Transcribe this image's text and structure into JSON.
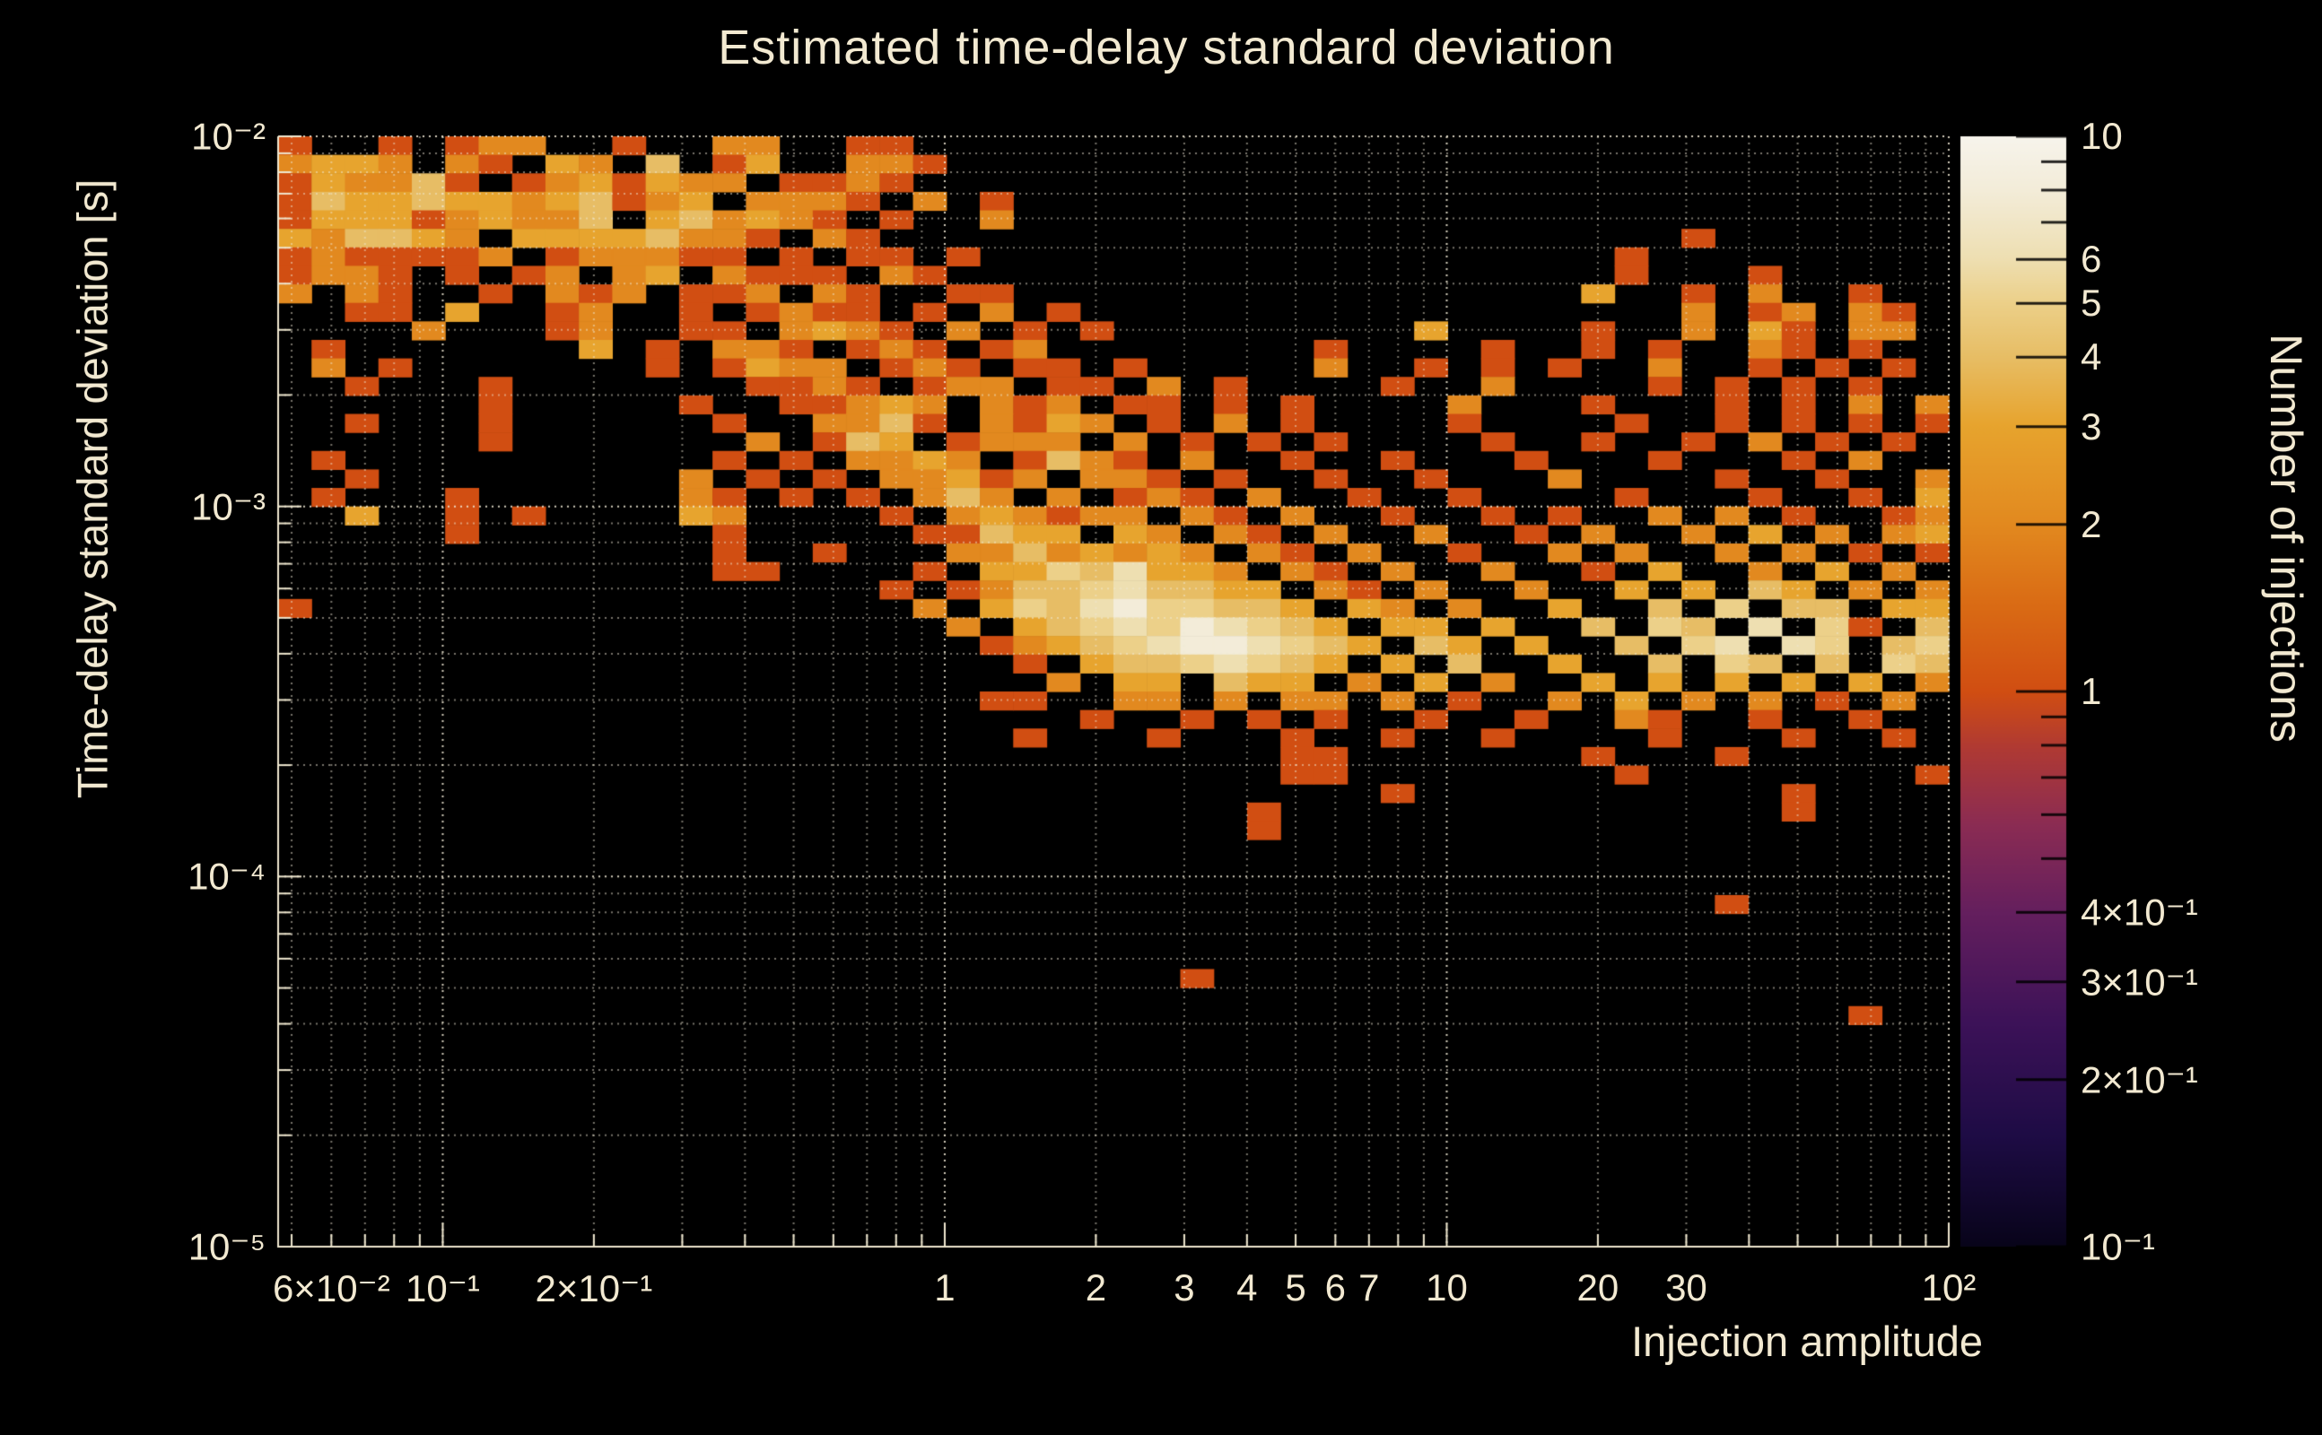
{
  "title": "Estimated time-delay standard deviation",
  "colors": {
    "background": "#000000",
    "text": "#f2e9d1",
    "grid_minor": "rgba(240,233,213,0.50)",
    "grid_major": "rgba(240,233,213,0.88)",
    "frame": "#efe7cf",
    "colorbar_tick": "rgba(0,0,0,0.85)"
  },
  "chart_data": {
    "type": "heatmap",
    "title": "Estimated time-delay standard deviation",
    "xlabel": "Injection amplitude",
    "ylabel": "Time-delay standard deviation [s]",
    "colorbar_label": "Number of injections",
    "x_scale": "log",
    "y_scale": "log",
    "z_scale": "log",
    "x_range": [
      0.047,
      100
    ],
    "y_range": [
      1e-05,
      0.01
    ],
    "z_range": [
      0.1,
      10
    ],
    "grid": {
      "cols": 50,
      "rows": 60,
      "legend": "rows top-to-bottom from 1e-2 to 1e-5 (20 rows/decade); cols left-to-right from 0.047 to 100 (15 cols/decade); char '.'=0 injections, '1'-'9'=count, 'A'=10"
    },
    "x_ticks": [
      {
        "label": "6×10⁻²",
        "value": 0.06
      },
      {
        "label": "10⁻¹",
        "value": 0.1
      },
      {
        "label": "2×10⁻¹",
        "value": 0.2
      },
      {
        "label": "1",
        "value": 1
      },
      {
        "label": "2",
        "value": 2
      },
      {
        "label": "3",
        "value": 3
      },
      {
        "label": "4",
        "value": 4
      },
      {
        "label": "5",
        "value": 5
      },
      {
        "label": "6",
        "value": 6
      },
      {
        "label": "7",
        "value": 7
      },
      {
        "label": "10",
        "value": 10
      },
      {
        "label": "20",
        "value": 20
      },
      {
        "label": "30",
        "value": 30
      },
      {
        "label": "10²",
        "value": 100
      }
    ],
    "y_ticks": [
      {
        "label": "10⁻²",
        "value": 0.01
      },
      {
        "label": "10⁻³",
        "value": 0.001
      },
      {
        "label": "10⁻⁴",
        "value": 0.0001
      },
      {
        "label": "10⁻⁵",
        "value": 1e-05
      }
    ],
    "colorbar_ticks": [
      {
        "label": "10",
        "value": 10
      },
      {
        "label": "6",
        "value": 6
      },
      {
        "label": "5",
        "value": 5
      },
      {
        "label": "4",
        "value": 4
      },
      {
        "label": "3",
        "value": 3
      },
      {
        "label": "2",
        "value": 2
      },
      {
        "label": "1",
        "value": 1
      },
      {
        "label": "4×10⁻¹",
        "value": 0.4
      },
      {
        "label": "3×10⁻¹",
        "value": 0.3
      },
      {
        "label": "2×10⁻¹",
        "value": 0.2
      },
      {
        "label": "10⁻¹",
        "value": 0.1
      }
    ],
    "colorbar_minor_ticks": [
      9,
      8,
      7,
      0.9,
      0.8,
      0.7,
      0.6,
      0.5
    ],
    "colormap_stops": [
      [
        0.0,
        "#08041a"
      ],
      [
        0.1,
        "#1e0c45"
      ],
      [
        0.2,
        "#3c1258"
      ],
      [
        0.3,
        "#641f5e"
      ],
      [
        0.38,
        "#8b2c53"
      ],
      [
        0.45,
        "#b03a33"
      ],
      [
        0.5,
        "#d14e12"
      ],
      [
        0.58,
        "#da6c15"
      ],
      [
        0.65,
        "#e2891f"
      ],
      [
        0.74,
        "#e7a42e"
      ],
      [
        0.8,
        "#e7bd64"
      ],
      [
        0.85,
        "#ecd089"
      ],
      [
        0.89,
        "#eedfb2"
      ],
      [
        0.95,
        "#f3ecd8"
      ],
      [
        1.0,
        "#f7f4ec"
      ]
    ],
    "cells": [
      "1..1.122..1..22..11...............................",
      "2332.21.32.4.13..221..............................",
      "132241.1231322.1121...............................",
      "1433433234123.2221.2.1............................",
      "1333123224.342321.1..2............................",
      "324432.33334221.21........................1.......",
      "1211112.122211.1.11.1...................1.........",
      "1221.1.12.23.2111.21....................1...1.....",
      "2.21..1.212.112.21..11.................3..1.2..1..",
      "..11.3..12..1.1211.1.2.1..................2.12.21.",
      "....2...12..11.2321.2.1.1.........3....1..2.31.22.",
      ".1.......3.1.221.121.12........1....1..1.1..21.1..",
      ".2.1.......1.1322.121.11.1.....2..1.1.1..2..1.1.1.",
      "..1...1.......1121.122.11.2.1....1..2....1.1.1.1..",
      "......1.....1..11232.212.11.1.1....2...1...1.1.2.2",
      "..1...1......1..2241.2132.1.2.1....1....1..1.1.1.1",
      "......1.......2.143.1222.2.1.1.1....1..1..1.2.1.1.",
      ".1...........1.1.2232.1421.2..1..1...1...1...1.2..",
      "..1.........2.1.1.22312.221.1..1..1...2....1..1..2",
      ".1...1......21.1.1.242.2.121.2..1..1....1...1..1.3",
      "..3..1.1....32....1.232122.21.2..1..1.1..2.2.1..12",
      ".....1.......1.....11433.32.21.2..2..1.2..2.3.2.23",
      ".............1..1...22423232.21.2..1..2.2..2.2.1.1",
      ".............11....1.33546332.21.2..2..1.3..2.3.2.",
      "..................1.1244564433.21.2..2..3.3.43.2.2",
      "1..................2.3546855443.32.2..3..4.5.44.33",
      "....................2.3456586543.33.3..4.54.6.51.4",
      ".....................123456886543.43.3..4.56.65.45",
      "......................1.34456543.3.4..3..4.54.4.54",
      ".......................2.33.433.2.3.2..3.3.3.3.3.2",
      ".....................11..22.2.22.2.1..2.3.2.2.1.2.",
      "........................1..1.1.1..1..1..21..1..1..",
      "......................1...1...1..1..1....1...1..1.",
      "..............................11.......1...1......",
      "..............................11........1........1",
      ".................................1...........1....",
      ".............................1...............1....",
      ".............................1....................",
      "..................................................",
      "..................................................",
      "..................................................",
      "...........................................1......",
      "..................................................",
      "..................................................",
      "..................................................",
      "...........................1......................",
      "..................................................",
      "...............................................1..",
      "..................................................",
      "..................................................",
      "..................................................",
      "..................................................",
      "..................................................",
      "..................................................",
      "..................................................",
      "..................................................",
      "..................................................",
      "..................................................",
      "..................................................",
      ".................................................."
    ]
  }
}
